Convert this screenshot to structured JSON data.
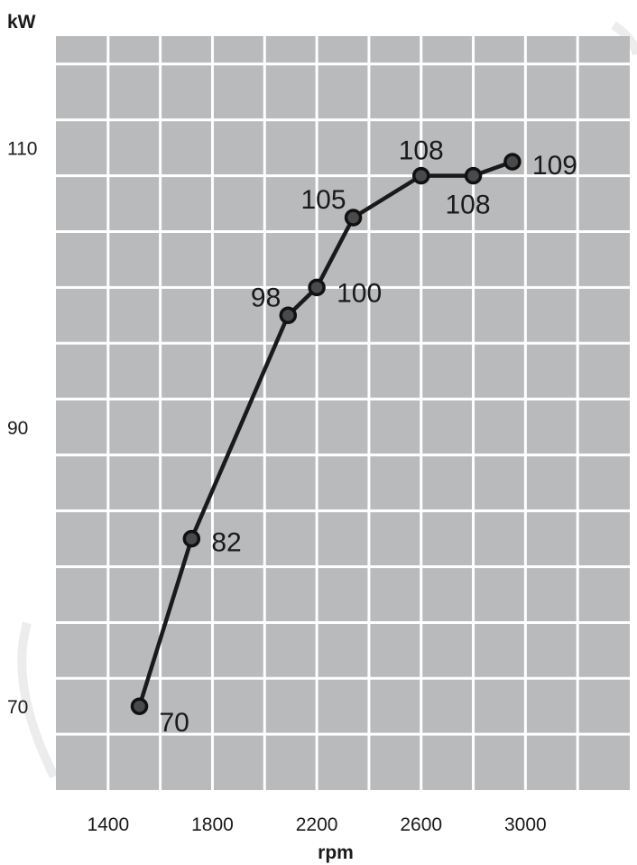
{
  "chart_data": {
    "type": "line",
    "xlabel": "rpm",
    "ylabel": "kW",
    "x_ticks": [
      1400,
      1800,
      2200,
      2600,
      3000
    ],
    "y_ticks": [
      70,
      90,
      110
    ],
    "xlim": [
      1200,
      3400
    ],
    "ylim": [
      64,
      118
    ],
    "grid": true,
    "colors": {
      "plot_background": "#b8babc",
      "grid": "#ffffff",
      "line": "#1a1a1a"
    },
    "series": [
      {
        "x": [
          1520,
          1720,
          2090,
          2200,
          2340,
          2600,
          2800,
          2950
        ],
        "y": [
          70,
          82,
          98,
          100,
          105,
          108,
          108,
          109
        ],
        "labels": [
          "70",
          "82",
          "98",
          "100",
          "105",
          "108",
          "108",
          "109"
        ]
      }
    ]
  }
}
